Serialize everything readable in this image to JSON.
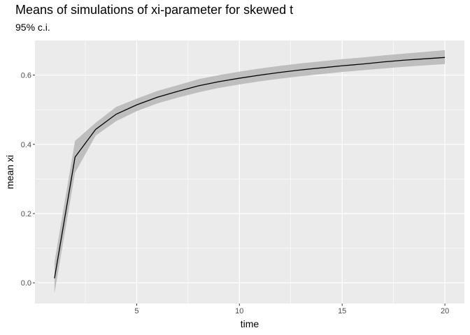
{
  "chart_data": {
    "type": "line",
    "title": "Means of simulations of xi-parameter for skewed t",
    "subtitle": "95% c.i.",
    "xlabel": "time",
    "ylabel": "mean xi",
    "xlim": [
      0.05,
      20.95
    ],
    "ylim": [
      -0.06,
      0.7
    ],
    "x_ticks": [
      5,
      10,
      15,
      20
    ],
    "y_ticks": [
      0.0,
      0.2,
      0.4,
      0.6
    ],
    "x_tick_labels": [
      "5",
      "10",
      "15",
      "20"
    ],
    "y_tick_labels": [
      "0.0",
      "0.2",
      "0.4",
      "0.6"
    ],
    "grid": true,
    "series": [
      {
        "x": [
          1,
          2,
          3,
          4,
          5,
          6,
          7,
          8,
          9,
          10,
          11,
          12,
          13,
          14,
          15,
          16,
          17,
          18,
          19,
          20
        ],
        "y": [
          0.013,
          0.363,
          0.443,
          0.487,
          0.514,
          0.536,
          0.553,
          0.569,
          0.581,
          0.591,
          0.6,
          0.608,
          0.615,
          0.621,
          0.627,
          0.632,
          0.638,
          0.643,
          0.647,
          0.651
        ],
        "lower": [
          -0.03,
          0.318,
          0.425,
          0.467,
          0.496,
          0.518,
          0.535,
          0.55,
          0.563,
          0.573,
          0.582,
          0.59,
          0.597,
          0.603,
          0.609,
          0.614,
          0.619,
          0.624,
          0.628,
          0.632
        ],
        "upper": [
          0.06,
          0.41,
          0.462,
          0.508,
          0.532,
          0.554,
          0.571,
          0.588,
          0.6,
          0.61,
          0.619,
          0.627,
          0.634,
          0.64,
          0.646,
          0.651,
          0.657,
          0.662,
          0.667,
          0.672
        ],
        "line_color": "#000000",
        "band_color": "#bebebe"
      }
    ],
    "panel_background": "#ebebeb",
    "grid_color": "#ffffff"
  }
}
